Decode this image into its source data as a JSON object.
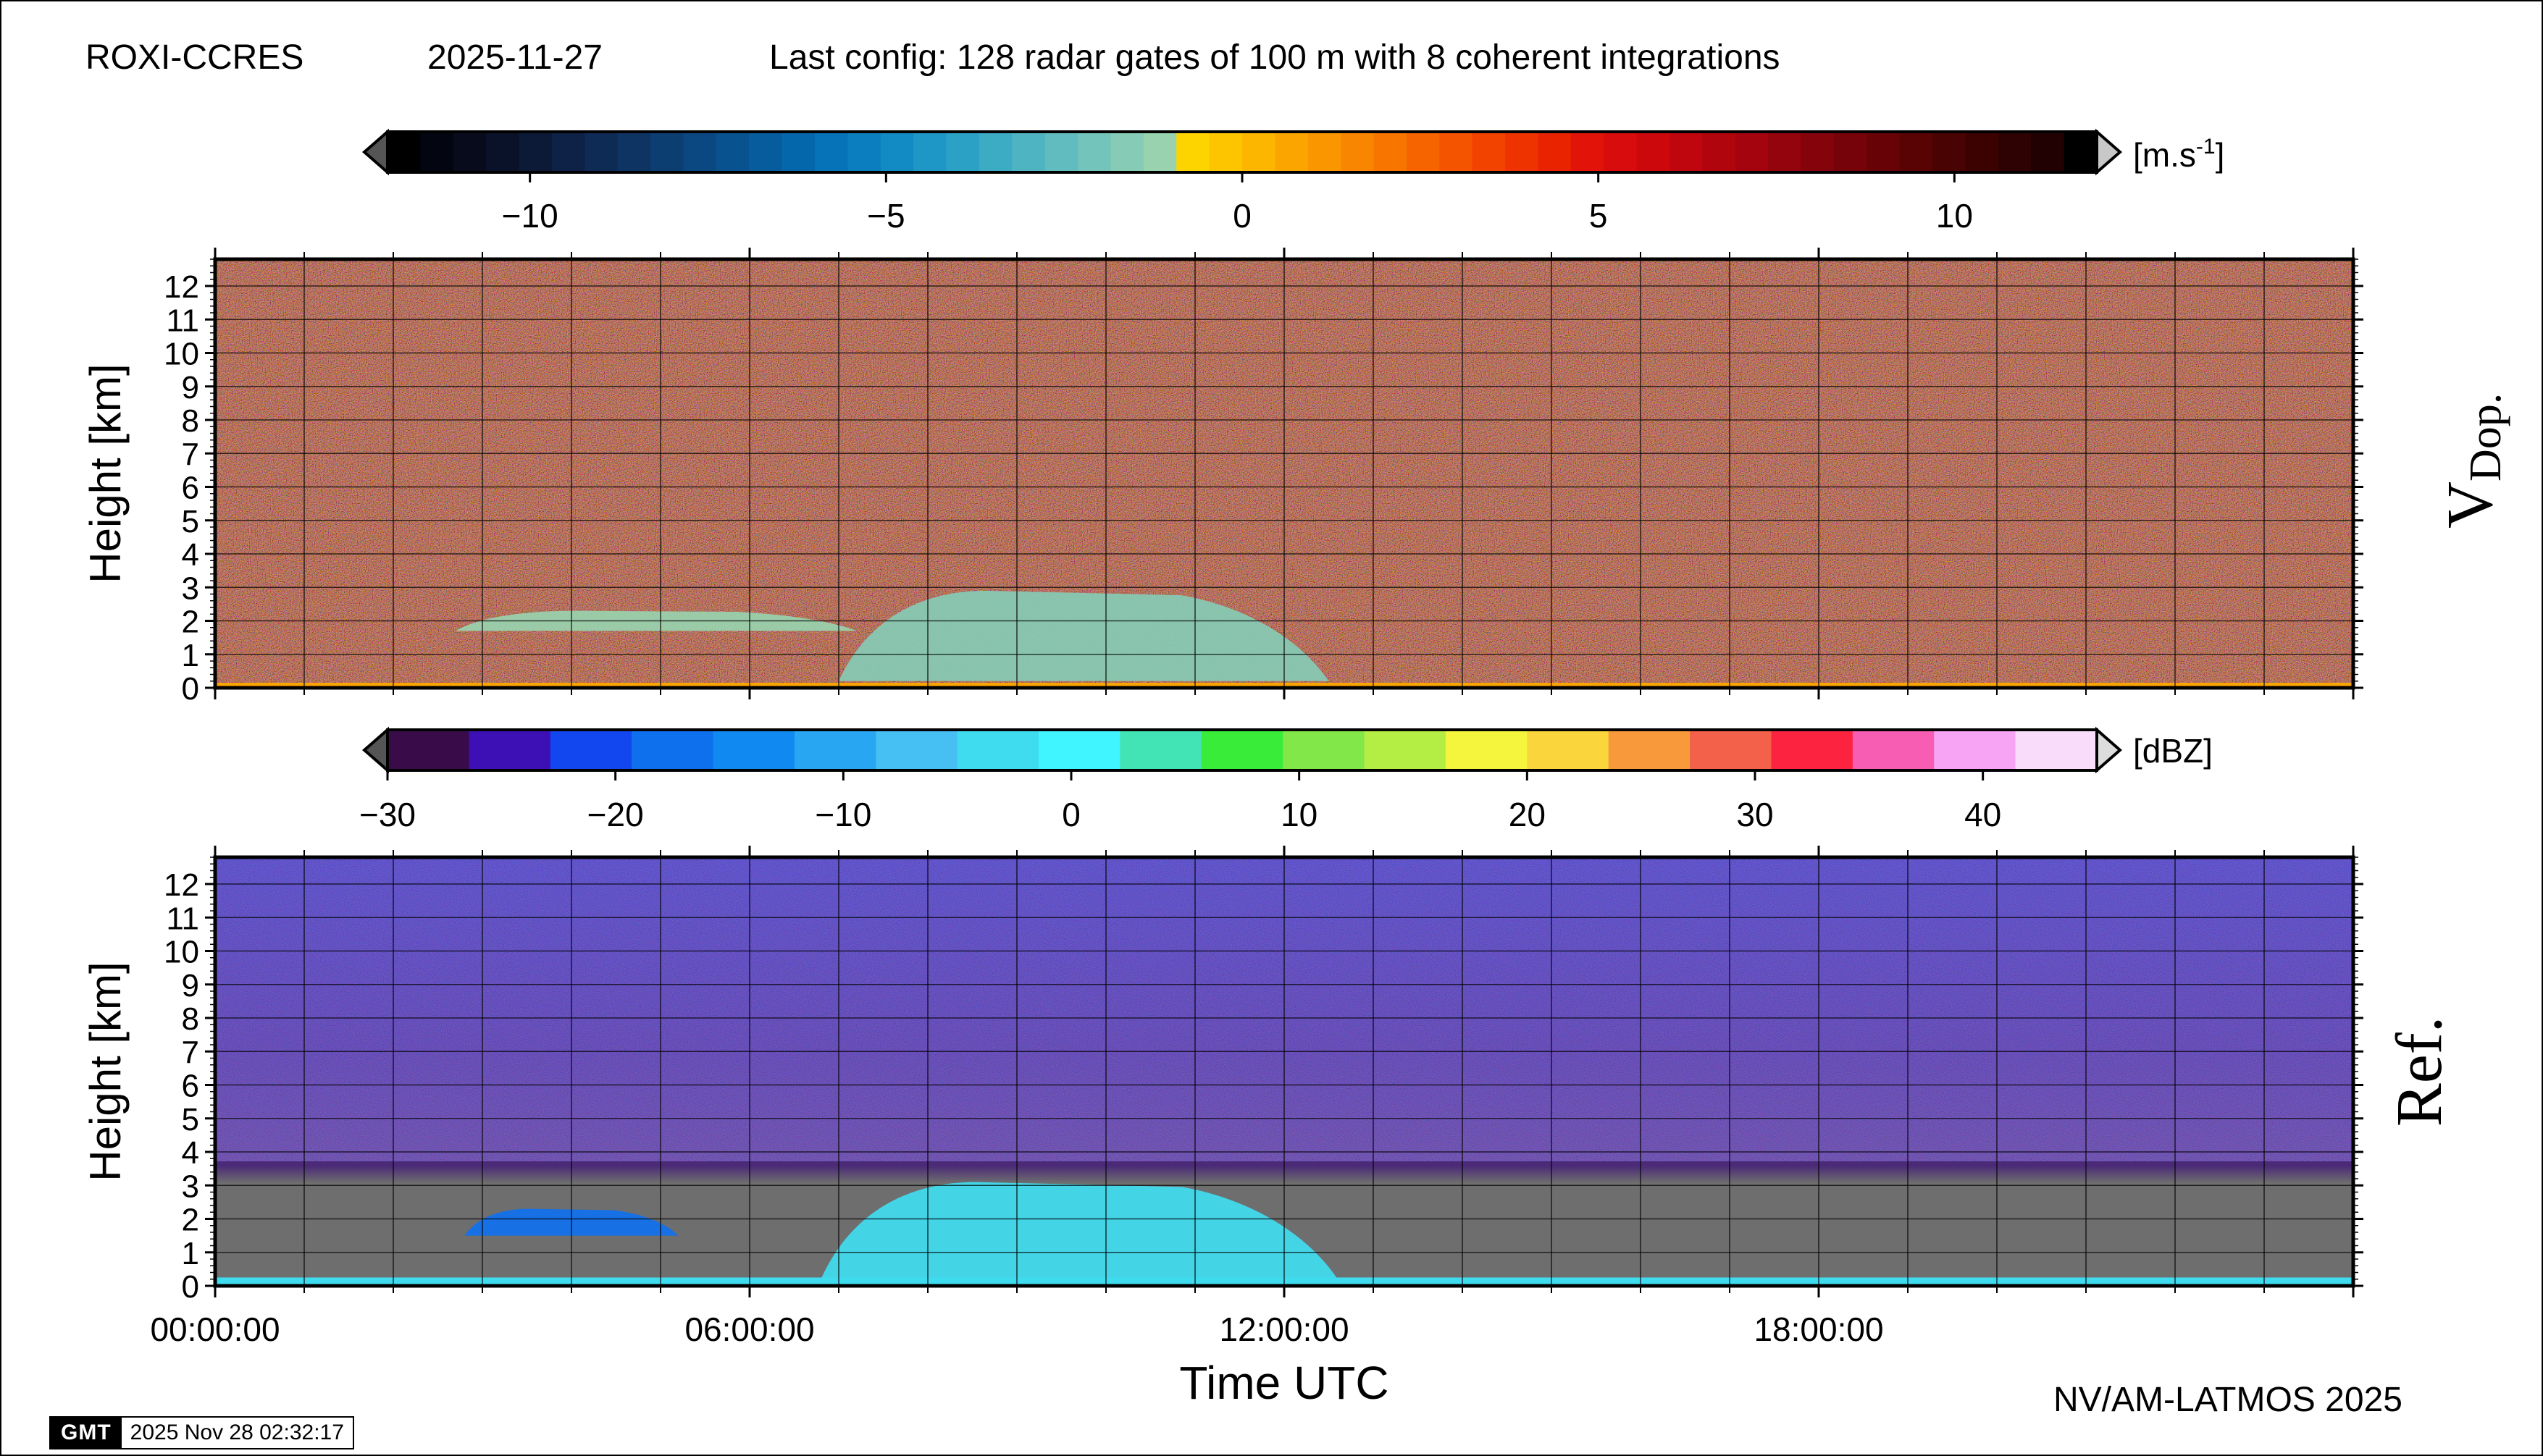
{
  "header": {
    "station": "ROXI-CCRES",
    "date": "2025-11-27",
    "config": "Last config: 128 radar gates of 100 m with 8 coherent integrations"
  },
  "credit": "NV/AM-LATMOS 2025",
  "gmt_stamp": {
    "logo": "GMT",
    "timestamp": "2025 Nov 28 02:32:17"
  },
  "chart_data": [
    {
      "type": "heatmap",
      "panel_label": "V",
      "panel_label_sub": "Dop.",
      "ylabel": "Height [km]",
      "xlabel": "",
      "x_range_hours": [
        0,
        24
      ],
      "ylim": [
        0,
        12.8
      ],
      "y_ticks": [
        0,
        1,
        2,
        3,
        4,
        5,
        6,
        7,
        8,
        9,
        10,
        11,
        12
      ],
      "x_ticks_hours": [
        0,
        6,
        12,
        18
      ],
      "grid": true,
      "colorbar": {
        "unit_base": "[m.s",
        "unit_sup": "-1",
        "unit_end": "]",
        "range": [
          -12,
          12
        ],
        "ticks": [
          -10,
          -5,
          0,
          5,
          10
        ],
        "tick_labels": [
          "−10",
          "−5",
          "0",
          "5",
          "10"
        ],
        "colors": [
          "#000000",
          "#030510",
          "#070b1c",
          "#0a1229",
          "#0c1a38",
          "#0d2246",
          "#0e2b55",
          "#0e3463",
          "#0d3e72",
          "#0b4881",
          "#095290",
          "#075c9e",
          "#0567ab",
          "#0672b7",
          "#0a7ebf",
          "#128ac4",
          "#1e96c6",
          "#2ca1c6",
          "#3cabc4",
          "#4eb4c1",
          "#60bcbe",
          "#73c4ba",
          "#86cbb5",
          "#98d2ae",
          "#fdd400",
          "#fcc500",
          "#fcb600",
          "#fba600",
          "#fa9700",
          "#f98600",
          "#f87500",
          "#f66400",
          "#f45400",
          "#f24300",
          "#ee3300",
          "#e92200",
          "#e2140a",
          "#d80c0c",
          "#cc080d",
          "#bf060e",
          "#b1050e",
          "#a3040e",
          "#94040d",
          "#85030b",
          "#760309",
          "#670307",
          "#590305",
          "#4a0303",
          "#3c0202",
          "#2e0202",
          "#210101",
          "#000000"
        ],
        "over_color": "#c8c8c8",
        "under_color": "#555555"
      },
      "features": [
        {
          "name": "cloud",
          "t0": 7.0,
          "t1": 12.5,
          "h0": 0.2,
          "h1": 2.9,
          "value": -1.5
        },
        {
          "name": "cloud-lower-layer",
          "t0": 2.7,
          "t1": 7.2,
          "h0": 1.7,
          "h1": 2.3,
          "value": -1.0
        },
        {
          "name": "surface-layer",
          "t0": 0.0,
          "t1": 24.0,
          "h0": 0.0,
          "h1": 0.15,
          "value": 0.5
        }
      ]
    },
    {
      "type": "heatmap",
      "panel_label": "Ref.",
      "ylabel": "Height [km]",
      "xlabel": "Time UTC",
      "x_range_hours": [
        0,
        24
      ],
      "x_ticks_hours": [
        0,
        6,
        12,
        18
      ],
      "x_tick_labels": [
        "00:00:00",
        "06:00:00",
        "12:00:00",
        "18:00:00"
      ],
      "ylim": [
        0,
        12.8
      ],
      "y_ticks": [
        0,
        1,
        2,
        3,
        4,
        5,
        6,
        7,
        8,
        9,
        10,
        11,
        12
      ],
      "grid": true,
      "no_data_color": "#6e6e6e",
      "colorbar": {
        "unit": "[dBZ]",
        "range": [
          -30,
          45
        ],
        "ticks": [
          -30,
          -20,
          -10,
          0,
          10,
          20,
          30,
          40
        ],
        "tick_labels": [
          "−30",
          "−20",
          "−10",
          "0",
          "10",
          "20",
          "30",
          "40"
        ],
        "colors": [
          "#3a0b49",
          "#3c10b5",
          "#1246ee",
          "#0f70ee",
          "#1089f0",
          "#28a6f2",
          "#46bff2",
          "#3fdcf0",
          "#40f5ff",
          "#42e3b4",
          "#3aec3a",
          "#82e84a",
          "#b4ee44",
          "#f5f53d",
          "#fad63c",
          "#f89a3c",
          "#f4614b",
          "#fb2340",
          "#f75db3",
          "#f8a4f5",
          "#f8dcfa"
        ],
        "over_color": "#dddddd",
        "under_color": "#555555"
      },
      "features": [
        {
          "name": "cloud",
          "t0": 6.8,
          "t1": 12.6,
          "h0": 0.2,
          "h1": 3.1,
          "value": -3
        },
        {
          "name": "low-echoes",
          "t0": 2.8,
          "t1": 5.2,
          "h0": 1.5,
          "h1": 2.3,
          "value": -18
        },
        {
          "name": "surface-layer",
          "t0": 0.0,
          "t1": 24.0,
          "h0": 0.0,
          "h1": 0.25,
          "value": -5
        }
      ]
    }
  ]
}
